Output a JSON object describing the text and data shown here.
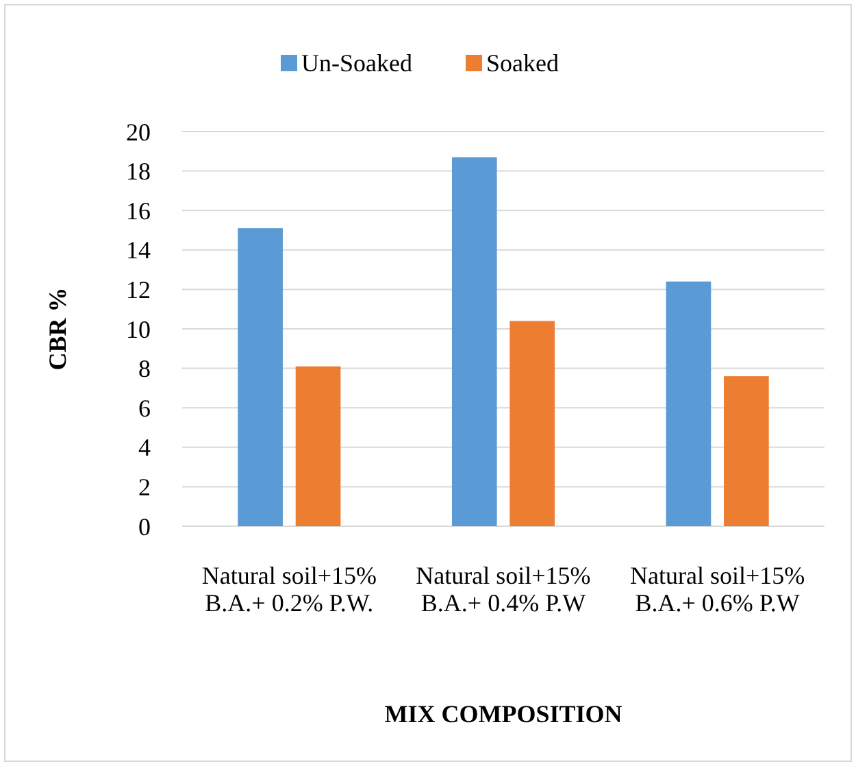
{
  "chart_data": {
    "type": "bar",
    "categories": [
      "Natural soil+15% B.A.+ 0.2% P.W.",
      "Natural soil+15% B.A.+ 0.4% P.W",
      "Natural soil+15% B.A.+ 0.6% P.W"
    ],
    "series": [
      {
        "name": "Un-Soaked",
        "color": "#5b9bd5",
        "values": [
          15.1,
          18.7,
          12.4
        ]
      },
      {
        "name": "Soaked",
        "color": "#ed7d31",
        "values": [
          8.1,
          10.4,
          7.6
        ]
      }
    ],
    "xlabel": "MIX COMPOSITION",
    "ylabel": "CBR %",
    "ylim": [
      0,
      20
    ],
    "yticks": [
      0,
      2,
      4,
      6,
      8,
      10,
      12,
      14,
      16,
      18,
      20
    ],
    "grid": "y",
    "legend": "top"
  }
}
